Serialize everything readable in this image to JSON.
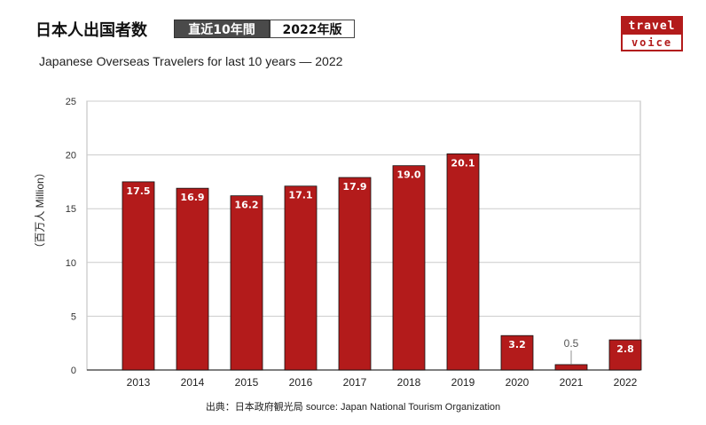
{
  "header": {
    "title": "日本人出国者数",
    "badge_period": "直近10年間",
    "badge_edition": "2022年版",
    "subtitle": "Japanese Overseas Travelers for last 10 years  —  2022"
  },
  "logo": {
    "line1": "travel",
    "line2": "voice"
  },
  "footer": {
    "source": "出典：日本政府観光局  source: Japan National Tourism Organization"
  },
  "colors": {
    "bar": "#b31b1b",
    "grid": "#cccccc",
    "axis": "#999999"
  },
  "chart_data": {
    "type": "bar",
    "title": "Japanese Overseas Travelers for last 10 years  —  2022",
    "ylabel": "（百万人 Million）",
    "xlabel": "",
    "categories": [
      "2013",
      "2014",
      "2015",
      "2016",
      "2017",
      "2018",
      "2019",
      "2020",
      "2021",
      "2022"
    ],
    "values": [
      17.5,
      16.9,
      16.2,
      17.1,
      17.9,
      19.0,
      20.1,
      3.2,
      0.5,
      2.8
    ],
    "value_labels": [
      "17.5",
      "16.9",
      "16.2",
      "17.1",
      "17.9",
      "19.0",
      "20.1",
      "3.2",
      "0.5",
      "2.8"
    ],
    "ylim": [
      0,
      25
    ],
    "yticks": [
      "0",
      "5",
      "10",
      "15",
      "20",
      "25"
    ],
    "grid": true,
    "legend": "none"
  }
}
